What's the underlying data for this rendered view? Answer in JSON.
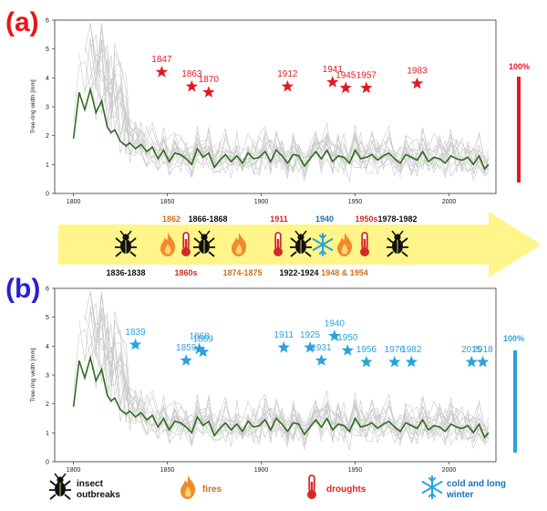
{
  "panels": {
    "a": {
      "label": "(a)",
      "percent_label": "100%"
    },
    "b": {
      "label": "(b)",
      "percent_label": "100%"
    }
  },
  "colors": {
    "mean_line": "#2e6b1e",
    "sample_lines": "#c8c8c8",
    "panel_a": "#e01a22",
    "panel_b": "#29a3dc",
    "timeline_arrow": "#fff58a",
    "insect": "#111111",
    "fire": "#f08a2c",
    "drought": "#d42a24",
    "cold": "#29a3dc",
    "text_black": "#111111",
    "text_orange": "#c8721e",
    "text_red": "#d42a24",
    "text_blue": "#1f6fb5"
  },
  "chart_data": [
    {
      "type": "line",
      "panel": "a",
      "ylabel": "Tree-ring width [mm]",
      "xlim": [
        1790,
        2025
      ],
      "ylim": [
        0,
        6
      ],
      "x_ticks": [
        1800,
        1850,
        1900,
        1950,
        2000
      ],
      "y_ticks": [
        0,
        1,
        2,
        3,
        4,
        5,
        6
      ],
      "mean_series": {
        "x": [
          1800,
          1803,
          1806,
          1809,
          1812,
          1815,
          1818,
          1820,
          1822,
          1825,
          1828,
          1830,
          1833,
          1836,
          1839,
          1842,
          1845,
          1848,
          1851,
          1854,
          1857,
          1860,
          1863,
          1866,
          1869,
          1872,
          1875,
          1878,
          1881,
          1884,
          1887,
          1890,
          1893,
          1896,
          1899,
          1902,
          1905,
          1908,
          1911,
          1914,
          1917,
          1920,
          1923,
          1926,
          1929,
          1932,
          1935,
          1938,
          1941,
          1944,
          1947,
          1950,
          1953,
          1956,
          1959,
          1962,
          1965,
          1968,
          1971,
          1974,
          1977,
          1980,
          1983,
          1986,
          1989,
          1992,
          1995,
          1998,
          2001,
          2004,
          2007,
          2010,
          2013,
          2016,
          2019,
          2021
        ],
        "y": [
          1.9,
          3.5,
          2.9,
          3.6,
          2.8,
          3.2,
          2.3,
          2.1,
          2.2,
          1.8,
          1.65,
          1.75,
          1.55,
          1.7,
          1.45,
          1.6,
          1.2,
          1.5,
          1.1,
          1.4,
          1.35,
          1.2,
          1.0,
          1.55,
          1.25,
          1.4,
          0.9,
          1.15,
          1.35,
          1.1,
          1.3,
          1.05,
          1.4,
          1.2,
          1.25,
          1.45,
          1.1,
          1.5,
          1.3,
          1.05,
          1.35,
          1.3,
          0.95,
          1.2,
          1.45,
          1.2,
          1.5,
          1.1,
          1.3,
          1.25,
          1.05,
          1.5,
          1.2,
          1.25,
          1.35,
          1.15,
          1.3,
          1.4,
          1.2,
          1.05,
          1.35,
          1.25,
          1.15,
          1.45,
          1.1,
          1.25,
          1.2,
          1.05,
          1.3,
          1.2,
          1.15,
          1.25,
          1.0,
          1.3,
          0.85,
          1.0
        ]
      },
      "events": [
        {
          "year": "1847",
          "x": 1847,
          "y": 4.2
        },
        {
          "year": "1863",
          "x": 1863,
          "y": 3.7
        },
        {
          "year": "1870",
          "x": 1872,
          "y": 3.5
        },
        {
          "year": "1912",
          "x": 1914,
          "y": 3.7
        },
        {
          "year": "1941",
          "x": 1938,
          "y": 3.85
        },
        {
          "year": "1945",
          "x": 1945,
          "y": 3.65
        },
        {
          "year": "1957",
          "x": 1956,
          "y": 3.65
        },
        {
          "year": "1983",
          "x": 1983,
          "y": 3.8
        }
      ]
    },
    {
      "type": "line",
      "panel": "b",
      "ylabel": "Tree-ring width [mm]",
      "xlim": [
        1790,
        2025
      ],
      "ylim": [
        0,
        6
      ],
      "x_ticks": [
        1800,
        1850,
        1900,
        1950,
        2000
      ],
      "y_ticks": [
        0,
        1,
        2,
        3,
        4,
        5,
        6
      ],
      "mean_series": {
        "x": [
          1800,
          1803,
          1806,
          1809,
          1812,
          1815,
          1818,
          1820,
          1822,
          1825,
          1828,
          1830,
          1833,
          1836,
          1839,
          1842,
          1845,
          1848,
          1851,
          1854,
          1857,
          1860,
          1863,
          1866,
          1869,
          1872,
          1875,
          1878,
          1881,
          1884,
          1887,
          1890,
          1893,
          1896,
          1899,
          1902,
          1905,
          1908,
          1911,
          1914,
          1917,
          1920,
          1923,
          1926,
          1929,
          1932,
          1935,
          1938,
          1941,
          1944,
          1947,
          1950,
          1953,
          1956,
          1959,
          1962,
          1965,
          1968,
          1971,
          1974,
          1977,
          1980,
          1983,
          1986,
          1989,
          1992,
          1995,
          1998,
          2001,
          2004,
          2007,
          2010,
          2013,
          2016,
          2019,
          2021
        ],
        "y": [
          1.9,
          3.5,
          2.9,
          3.6,
          2.8,
          3.2,
          2.3,
          2.1,
          2.2,
          1.8,
          1.65,
          1.75,
          1.55,
          1.7,
          1.45,
          1.6,
          1.2,
          1.5,
          1.1,
          1.4,
          1.35,
          1.2,
          1.0,
          1.55,
          1.25,
          1.4,
          0.9,
          1.15,
          1.35,
          1.1,
          1.3,
          1.05,
          1.4,
          1.2,
          1.25,
          1.45,
          1.1,
          1.5,
          1.3,
          1.05,
          1.35,
          1.3,
          0.95,
          1.2,
          1.45,
          1.2,
          1.5,
          1.1,
          1.3,
          1.25,
          1.05,
          1.5,
          1.2,
          1.25,
          1.35,
          1.15,
          1.3,
          1.4,
          1.2,
          1.05,
          1.35,
          1.25,
          1.15,
          1.45,
          1.1,
          1.25,
          1.2,
          1.05,
          1.3,
          1.2,
          1.15,
          1.25,
          1.0,
          1.3,
          0.85,
          1.0
        ]
      },
      "events": [
        {
          "year": "1839",
          "x": 1833,
          "y": 4.05
        },
        {
          "year": "1859",
          "x": 1860,
          "y": 3.5
        },
        {
          "year": "1868",
          "x": 1867,
          "y": 3.9
        },
        {
          "year": "1869",
          "x": 1869,
          "y": 3.8
        },
        {
          "year": "1911",
          "x": 1912,
          "y": 3.95
        },
        {
          "year": "1925",
          "x": 1926,
          "y": 3.95
        },
        {
          "year": "1931",
          "x": 1932,
          "y": 3.5
        },
        {
          "year": "1940",
          "x": 1939,
          "y": 4.35
        },
        {
          "year": "1950",
          "x": 1946,
          "y": 3.85
        },
        {
          "year": "1956",
          "x": 1956,
          "y": 3.45
        },
        {
          "year": "1976",
          "x": 1971,
          "y": 3.45
        },
        {
          "year": "1982",
          "x": 1980,
          "y": 3.45
        },
        {
          "year": "2015",
          "x": 2012,
          "y": 3.45
        },
        {
          "year": "2018",
          "x": 2018,
          "y": 3.45
        }
      ]
    }
  ],
  "timeline": {
    "events": [
      {
        "label": "1836-1838",
        "color": "black",
        "pos": "below",
        "icon": "insect"
      },
      {
        "label": "1862",
        "color": "orange",
        "pos": "above",
        "icon": "fire"
      },
      {
        "label": "1860s",
        "color": "red",
        "pos": "below",
        "icon": "drought"
      },
      {
        "label": "1866-1868",
        "color": "black",
        "pos": "above",
        "icon": "insect"
      },
      {
        "label": "1874-1875",
        "color": "orange",
        "pos": "below",
        "icon": "fire"
      },
      {
        "label": "1911",
        "color": "red",
        "pos": "above",
        "icon": "drought"
      },
      {
        "label": "1922-1924",
        "color": "black",
        "pos": "below",
        "icon": "insect"
      },
      {
        "label": "1940",
        "color": "blue",
        "pos": "above",
        "icon": "cold"
      },
      {
        "label": "1948 & 1954",
        "color": "orange",
        "pos": "below",
        "icon": "fire"
      },
      {
        "label": "1950s",
        "color": "red",
        "pos": "above",
        "icon": "drought"
      },
      {
        "label": "1978-1982",
        "color": "black",
        "pos": "above",
        "icon": "insect"
      }
    ]
  },
  "legend": [
    {
      "icon": "insect",
      "label": "insect outbreaks",
      "line1": "insect",
      "line2": "outbreaks",
      "color": "black"
    },
    {
      "icon": "fire",
      "label": "fires",
      "line1": "fires",
      "line2": "",
      "color": "orange"
    },
    {
      "icon": "drought",
      "label": "droughts",
      "line1": "droughts",
      "line2": "",
      "color": "red"
    },
    {
      "icon": "cold",
      "label": "cold and long winter",
      "line1": "cold and long",
      "line2": "winter",
      "color": "blue"
    }
  ]
}
